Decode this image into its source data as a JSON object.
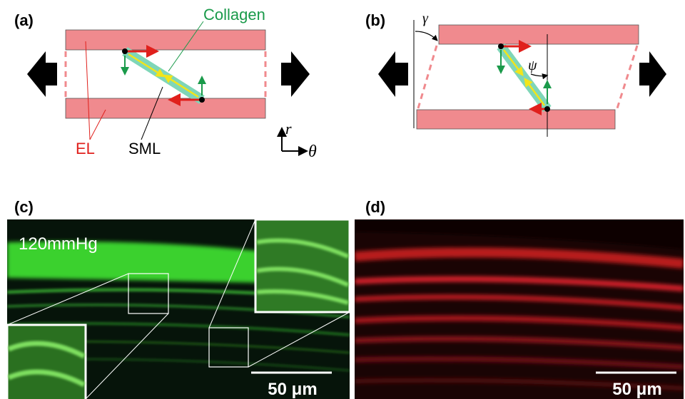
{
  "panels": {
    "a": {
      "label": "(a)",
      "collagen": "Collagen",
      "el": "EL",
      "sml": "SML",
      "r": "r",
      "theta": "θ"
    },
    "b": {
      "label": "(b)",
      "gamma": "γ",
      "psi": "ψ"
    },
    "c": {
      "label": "(c)",
      "pressure": "120mmHg",
      "scale": "50 μm"
    },
    "d": {
      "label": "(d)",
      "scale": "50 μm"
    }
  }
}
